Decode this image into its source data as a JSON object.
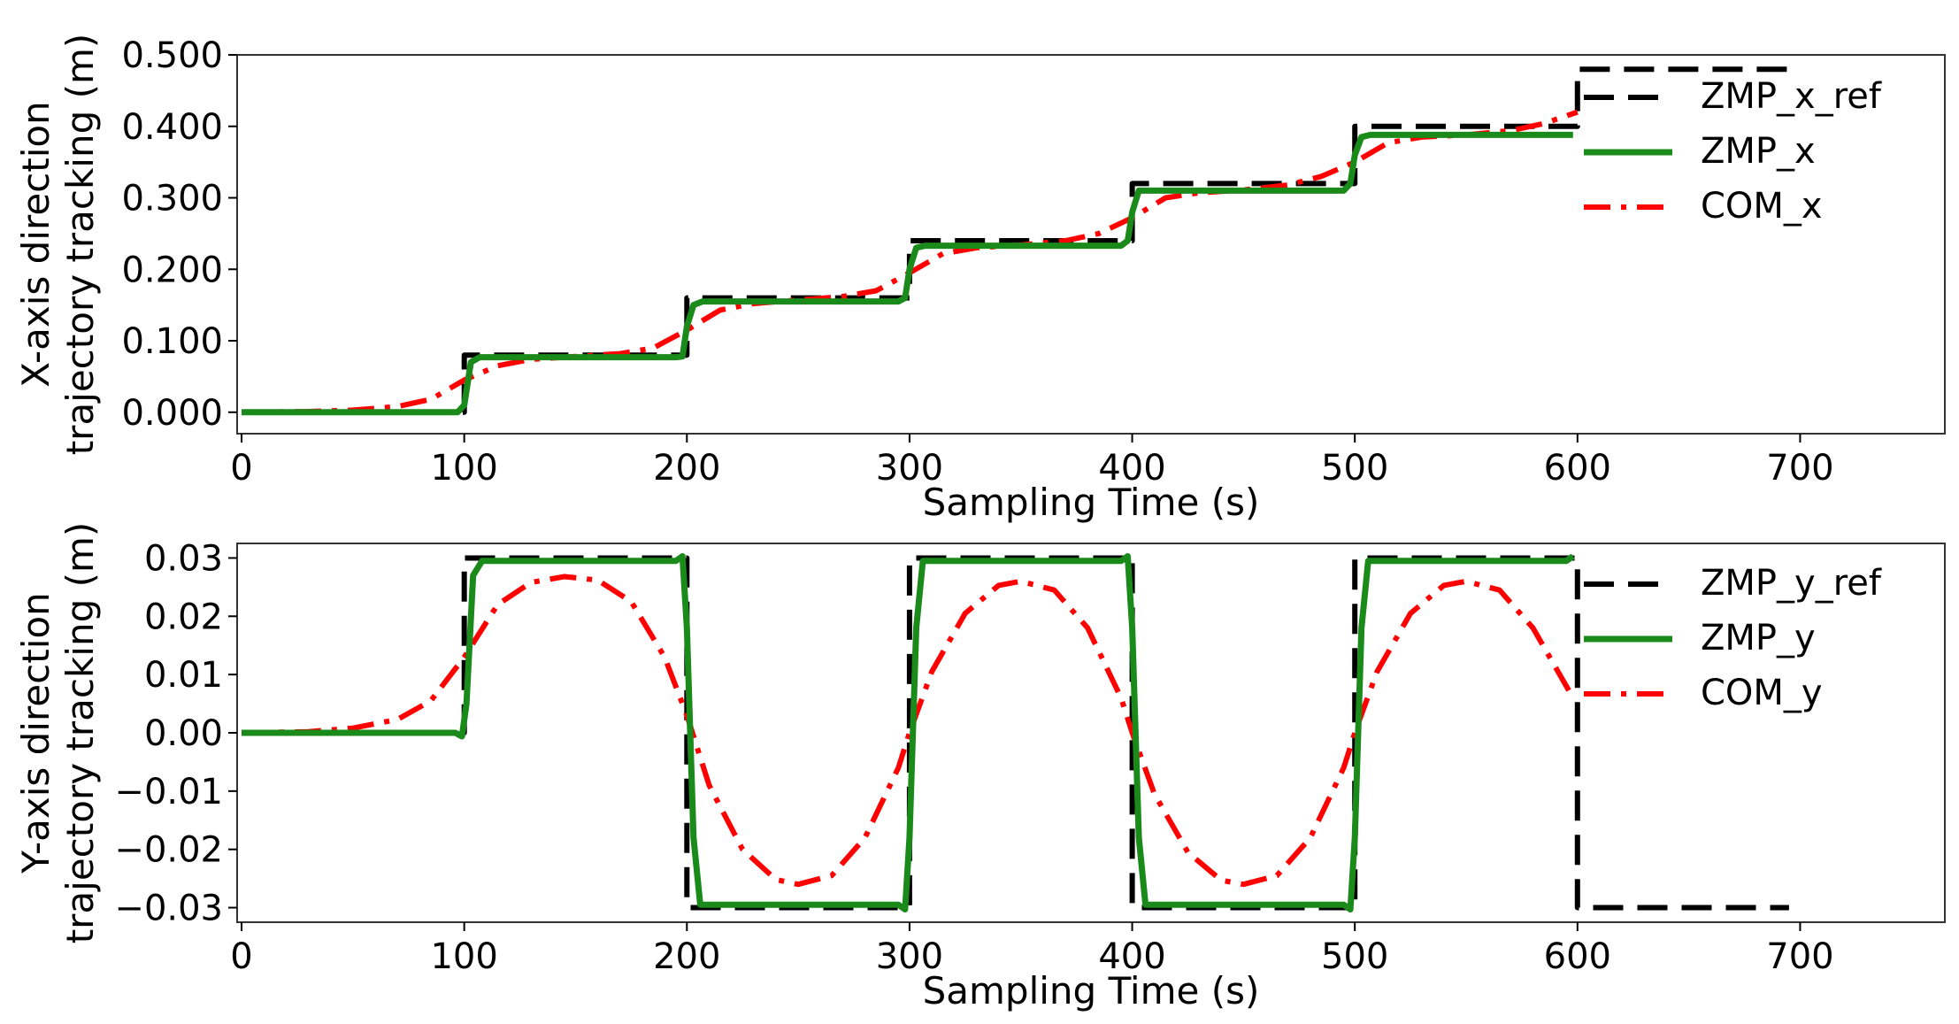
{
  "chart_data": [
    {
      "type": "line",
      "xlabel": "Sampling Time (s)",
      "ylabel_line1": "X-axis direction",
      "ylabel_line2": "trajectory tracking (m)",
      "xlim": [
        -2,
        765
      ],
      "ylim": [
        -0.03,
        0.5
      ],
      "xticks": [
        0,
        100,
        200,
        300,
        400,
        500,
        600,
        700
      ],
      "xtick_labels": [
        "0",
        "100",
        "200",
        "300",
        "400",
        "500",
        "600",
        "700"
      ],
      "yticks": [
        0,
        0.1,
        0.2,
        0.3,
        0.4,
        0.5
      ],
      "ytick_labels": [
        "0.000",
        "0.100",
        "0.200",
        "0.300",
        "0.400",
        "0.500"
      ],
      "grid": false,
      "legend_position": "upper-right",
      "series": [
        {
          "name": "ZMP_x_ref",
          "color": "#000000",
          "style": "dashed",
          "x": [
            0,
            100,
            100,
            200,
            200,
            300,
            300,
            400,
            400,
            500,
            500,
            600,
            600,
            700
          ],
          "y": [
            0,
            0,
            0.08,
            0.08,
            0.16,
            0.16,
            0.24,
            0.24,
            0.32,
            0.32,
            0.4,
            0.4,
            0.48,
            0.48
          ]
        },
        {
          "name": "ZMP_x",
          "color": "#1a8a1a",
          "style": "solid",
          "x": [
            0,
            97,
            100,
            103,
            107,
            195,
            198,
            200,
            203,
            207,
            295,
            298,
            300,
            303,
            307,
            395,
            398,
            400,
            403,
            407,
            495,
            498,
            500,
            503,
            507,
            598
          ],
          "y": [
            0,
            0,
            0.01,
            0.07,
            0.077,
            0.077,
            0.078,
            0.12,
            0.15,
            0.155,
            0.155,
            0.16,
            0.2,
            0.23,
            0.233,
            0.233,
            0.24,
            0.28,
            0.31,
            0.31,
            0.31,
            0.32,
            0.36,
            0.385,
            0.388,
            0.388
          ]
        },
        {
          "name": "COM_x",
          "color": "#ff0000",
          "style": "dashdot",
          "x": [
            0,
            30,
            50,
            70,
            85,
            100,
            115,
            130,
            150,
            170,
            185,
            200,
            215,
            230,
            250,
            270,
            285,
            300,
            315,
            330,
            350,
            370,
            385,
            400,
            415,
            430,
            450,
            470,
            485,
            500,
            515,
            530,
            550,
            570,
            585,
            600
          ],
          "y": [
            0,
            0.001,
            0.003,
            0.008,
            0.018,
            0.045,
            0.065,
            0.074,
            0.078,
            0.082,
            0.09,
            0.115,
            0.143,
            0.152,
            0.157,
            0.162,
            0.17,
            0.195,
            0.222,
            0.23,
            0.234,
            0.24,
            0.25,
            0.272,
            0.3,
            0.307,
            0.311,
            0.318,
            0.33,
            0.35,
            0.377,
            0.385,
            0.388,
            0.394,
            0.404,
            0.42
          ]
        }
      ]
    },
    {
      "type": "line",
      "xlabel": "Sampling Time (s)",
      "ylabel_line1": "Y-axis direction",
      "ylabel_line2": "trajectory tracking (m)",
      "xlim": [
        -2,
        765
      ],
      "ylim": [
        -0.0325,
        0.0325
      ],
      "xticks": [
        0,
        100,
        200,
        300,
        400,
        500,
        600,
        700
      ],
      "xtick_labels": [
        "0",
        "100",
        "200",
        "300",
        "400",
        "500",
        "600",
        "700"
      ],
      "yticks": [
        0.03,
        0.02,
        0.01,
        0.0,
        -0.01,
        -0.02,
        -0.03
      ],
      "ytick_labels": [
        "0.03",
        "0.02",
        "0.01",
        "0.00",
        "−0.01",
        "−0.02",
        "−0.03"
      ],
      "grid": false,
      "legend_position": "right",
      "series": [
        {
          "name": "ZMP_y_ref",
          "color": "#000000",
          "style": "dashed",
          "x": [
            0,
            100,
            100,
            200,
            200,
            300,
            300,
            400,
            400,
            500,
            500,
            600,
            600,
            695
          ],
          "y": [
            0,
            0,
            0.03,
            0.03,
            -0.03,
            -0.03,
            0.03,
            0.03,
            -0.03,
            -0.03,
            0.03,
            0.03,
            -0.03,
            -0.03
          ]
        },
        {
          "name": "ZMP_y",
          "color": "#1a8a1a",
          "style": "solid",
          "x": [
            0,
            96,
            99,
            101,
            104,
            108,
            195,
            198,
            200,
            203,
            206,
            210,
            295,
            298,
            300,
            303,
            306,
            310,
            395,
            398,
            400,
            403,
            406,
            410,
            495,
            498,
            500,
            503,
            506,
            510,
            595,
            598
          ],
          "y": [
            0,
            0,
            -0.0006,
            0.005,
            0.027,
            0.0295,
            0.0295,
            0.0303,
            0.018,
            -0.018,
            -0.0295,
            -0.0295,
            -0.0295,
            -0.0303,
            -0.018,
            0.018,
            0.0295,
            0.0295,
            0.0295,
            0.0303,
            0.018,
            -0.018,
            -0.0295,
            -0.0295,
            -0.0295,
            -0.0303,
            -0.018,
            0.018,
            0.0295,
            0.0295,
            0.0295,
            0.0303
          ]
        },
        {
          "name": "COM_y",
          "color": "#ff0000",
          "style": "dashdot",
          "x": [
            0,
            30,
            50,
            70,
            85,
            100,
            115,
            130,
            145,
            160,
            175,
            190,
            200,
            210,
            225,
            240,
            250,
            265,
            280,
            295,
            300,
            310,
            325,
            340,
            350,
            365,
            380,
            395,
            400,
            410,
            425,
            440,
            450,
            465,
            480,
            495,
            500,
            510,
            525,
            540,
            550,
            565,
            580,
            598
          ],
          "y": [
            0,
            0.0002,
            0.0008,
            0.0023,
            0.0055,
            0.013,
            0.022,
            0.0258,
            0.0268,
            0.0262,
            0.0225,
            0.013,
            0.003,
            -0.009,
            -0.02,
            -0.0252,
            -0.026,
            -0.0245,
            -0.018,
            -0.006,
            0.0,
            0.0105,
            0.0205,
            0.0253,
            0.026,
            0.0245,
            0.018,
            0.006,
            0.0,
            -0.0105,
            -0.0205,
            -0.0253,
            -0.026,
            -0.0245,
            -0.018,
            -0.006,
            0.0,
            0.0105,
            0.0205,
            0.0253,
            0.026,
            0.0245,
            0.018,
            0.006
          ]
        }
      ]
    }
  ]
}
